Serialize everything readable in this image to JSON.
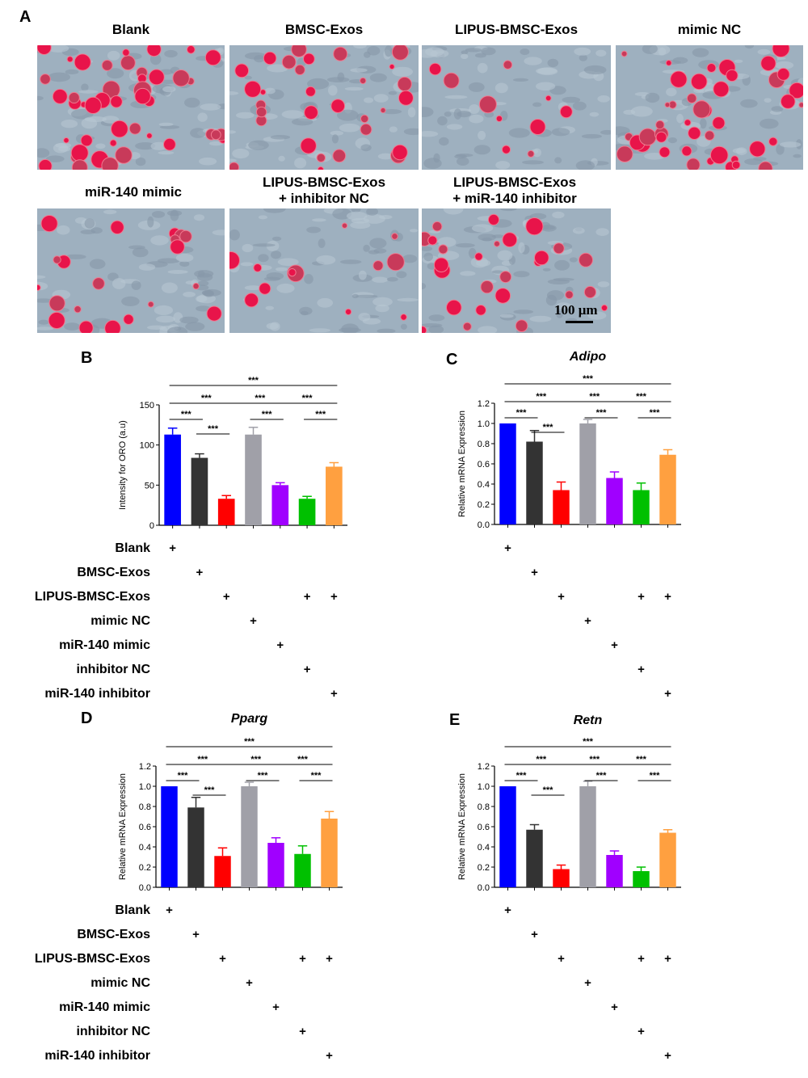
{
  "panels": {
    "a": "A",
    "b": "B",
    "c": "C",
    "d": "D",
    "e": "E"
  },
  "micrographs": [
    {
      "label": "Blank",
      "stain": "high"
    },
    {
      "label": "BMSC-Exos",
      "stain": "medium"
    },
    {
      "label": "LIPUS-BMSC-Exos",
      "stain": "low"
    },
    {
      "label": "mimic NC",
      "stain": "high"
    },
    {
      "label": "miR-140 mimic",
      "stain": "medium-low"
    },
    {
      "label": "LIPUS-BMSC-Exos\n+ inhibitor NC",
      "stain": "low"
    },
    {
      "label": "LIPUS-BMSC-Exos\n+ miR-140 inhibitor",
      "stain": "medium"
    }
  ],
  "scale_bar": "100 μm",
  "colors": [
    "#0000ff",
    "#333333",
    "#ff0000",
    "#a0a0a8",
    "#a000ff",
    "#00c000",
    "#ffa040"
  ],
  "sig_label": "***",
  "treatments": [
    "Blank",
    "BMSC-Exos",
    "LIPUS-BMSC-Exos",
    "mimic NC",
    "miR-140 mimic",
    "inhibitor NC",
    "miR-140 inhibitor"
  ],
  "treatment_matrix": [
    [
      1,
      0,
      0,
      0,
      0,
      0,
      0
    ],
    [
      0,
      1,
      0,
      0,
      0,
      0,
      0
    ],
    [
      0,
      0,
      1,
      0,
      0,
      1,
      1
    ],
    [
      0,
      0,
      0,
      1,
      0,
      0,
      0
    ],
    [
      0,
      0,
      0,
      0,
      1,
      0,
      0
    ],
    [
      0,
      0,
      0,
      0,
      0,
      1,
      0
    ],
    [
      0,
      0,
      0,
      0,
      0,
      0,
      1
    ]
  ],
  "treatment_mark": "+",
  "chart_data": [
    {
      "type": "bar",
      "panel": "B",
      "title": "",
      "ylabel": "Intensity for ORO (a.u)",
      "ylim": [
        0,
        150
      ],
      "yticks": [
        0,
        50,
        100,
        150
      ],
      "values": [
        113,
        84,
        33,
        113,
        50,
        33,
        73
      ],
      "errors": [
        8,
        5,
        4,
        9,
        3,
        3,
        5
      ],
      "significance": [
        [
          0,
          1
        ],
        [
          1,
          2
        ],
        [
          0,
          3
        ],
        [
          3,
          4
        ],
        [
          4,
          5
        ],
        [
          5,
          6
        ],
        [
          0,
          6
        ]
      ]
    },
    {
      "type": "bar",
      "panel": "C",
      "title": "Adipo",
      "ylabel": "Relative mRNA Expression",
      "ylim": [
        0,
        1.2
      ],
      "yticks": [
        0.0,
        0.2,
        0.4,
        0.6,
        0.8,
        1.0,
        1.2
      ],
      "values": [
        1.0,
        0.82,
        0.34,
        1.0,
        0.46,
        0.34,
        0.69
      ],
      "errors": [
        0.0,
        0.11,
        0.08,
        0.04,
        0.06,
        0.07,
        0.05
      ],
      "significance": [
        [
          0,
          1
        ],
        [
          1,
          2
        ],
        [
          0,
          3
        ],
        [
          3,
          4
        ],
        [
          4,
          5
        ],
        [
          5,
          6
        ],
        [
          0,
          6
        ]
      ]
    },
    {
      "type": "bar",
      "panel": "D",
      "title": "Pparg",
      "ylabel": "Relative mRNA Expression",
      "ylim": [
        0,
        1.2
      ],
      "yticks": [
        0.0,
        0.2,
        0.4,
        0.6,
        0.8,
        1.0,
        1.2
      ],
      "values": [
        1.0,
        0.79,
        0.31,
        1.0,
        0.44,
        0.33,
        0.68
      ],
      "errors": [
        0.0,
        0.1,
        0.08,
        0.04,
        0.05,
        0.08,
        0.07
      ],
      "significance": [
        [
          0,
          1
        ],
        [
          1,
          2
        ],
        [
          0,
          3
        ],
        [
          3,
          4
        ],
        [
          4,
          5
        ],
        [
          5,
          6
        ],
        [
          0,
          6
        ]
      ]
    },
    {
      "type": "bar",
      "panel": "E",
      "title": "Retn",
      "ylabel": "Relative mRNA Expression",
      "ylim": [
        0,
        1.2
      ],
      "yticks": [
        0.0,
        0.2,
        0.4,
        0.6,
        0.8,
        1.0,
        1.2
      ],
      "values": [
        1.0,
        0.57,
        0.18,
        1.0,
        0.32,
        0.16,
        0.54
      ],
      "errors": [
        0.0,
        0.05,
        0.04,
        0.05,
        0.04,
        0.04,
        0.03
      ],
      "significance": [
        [
          0,
          1
        ],
        [
          1,
          2
        ],
        [
          0,
          3
        ],
        [
          3,
          4
        ],
        [
          4,
          5
        ],
        [
          5,
          6
        ],
        [
          0,
          6
        ]
      ]
    }
  ]
}
